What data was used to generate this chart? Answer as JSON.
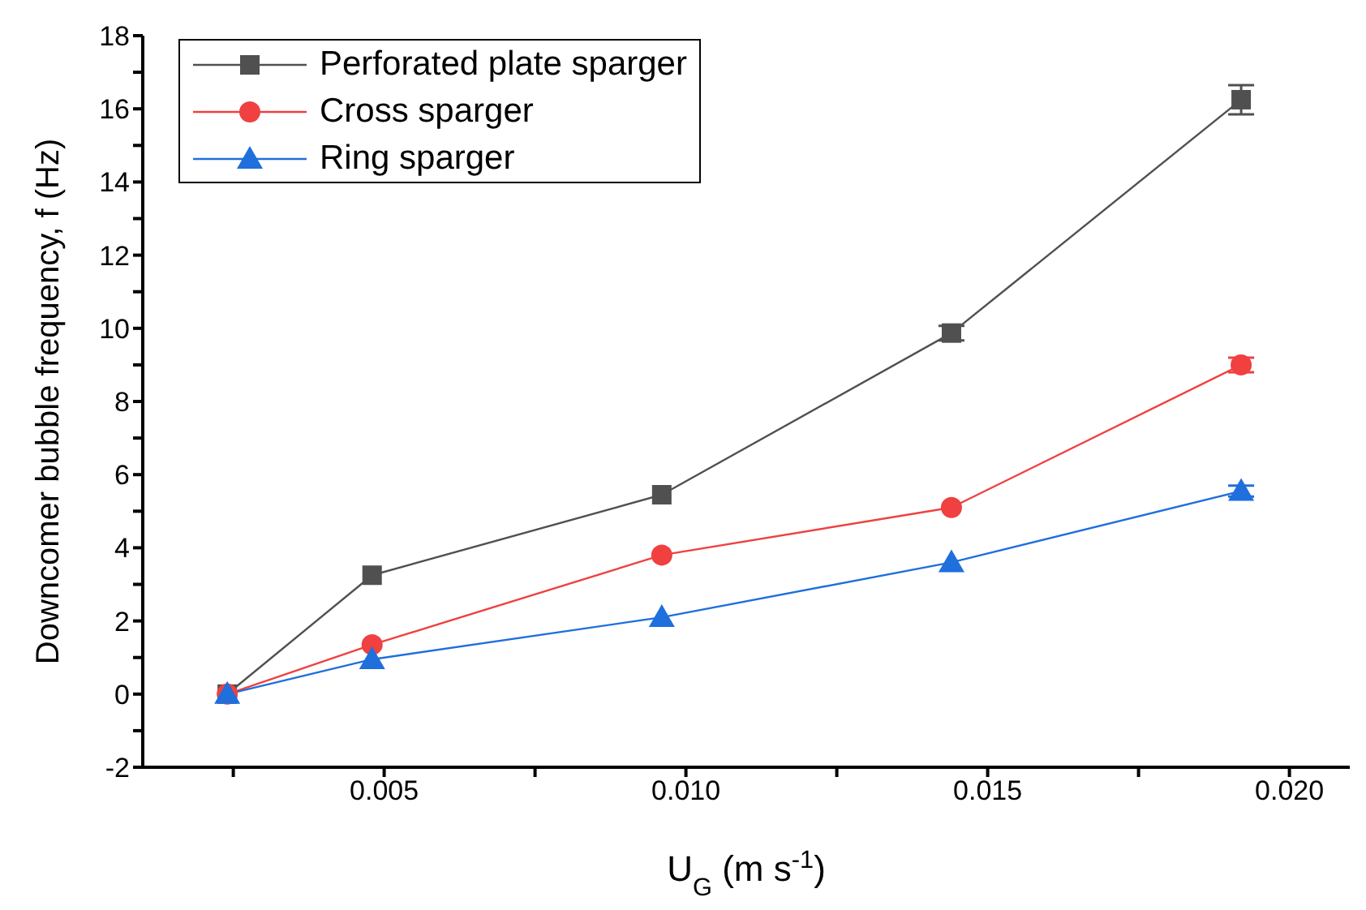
{
  "chart_data": {
    "type": "line",
    "xlabel": "U$_{G}$ (m s$^{-1}$)",
    "ylabel": "Downcomer bubble frequency, f (Hz)",
    "x": [
      0.0024,
      0.0048,
      0.0096,
      0.0144,
      0.0192
    ],
    "series": [
      {
        "name": "Perforated plate sparger",
        "color": "#505050",
        "marker": "square",
        "values": [
          0,
          3.25,
          5.45,
          9.87,
          16.25
        ],
        "errors": [
          null,
          null,
          null,
          0.2,
          0.4
        ]
      },
      {
        "name": "Cross sparger",
        "color": "#f04040",
        "marker": "circle",
        "values": [
          0,
          1.35,
          3.8,
          5.1,
          9.0
        ],
        "errors": [
          null,
          null,
          null,
          null,
          0.2
        ]
      },
      {
        "name": "Ring sparger",
        "color": "#1f6fdc",
        "marker": "triangle",
        "values": [
          0,
          0.95,
          2.1,
          3.6,
          5.55
        ],
        "errors": [
          null,
          null,
          null,
          null,
          0.15
        ]
      }
    ],
    "xlim": [
      0.001,
      0.021
    ],
    "xticks": [
      {
        "value": 0.0025,
        "label": null
      },
      0.005,
      {
        "value": 0.0075,
        "label": null
      },
      {
        "value": 0.01,
        "label": "0.010"
      },
      {
        "value": 0.0125,
        "label": null
      },
      0.015,
      {
        "value": 0.0175,
        "label": null
      },
      {
        "value": 0.02,
        "label": "0.020"
      }
    ],
    "ylim": [
      -2,
      18
    ],
    "yticks": [
      -2,
      {
        "value": -1,
        "label": null
      },
      0,
      {
        "value": 1,
        "label": null
      },
      2,
      {
        "value": 3,
        "label": null
      },
      4,
      {
        "value": 5,
        "label": null
      },
      6,
      {
        "value": 7,
        "label": null
      },
      8,
      {
        "value": 9,
        "label": null
      },
      10,
      {
        "value": 11,
        "label": null
      },
      12,
      {
        "value": 13,
        "label": null
      },
      14,
      {
        "value": 15,
        "label": null
      },
      16,
      {
        "value": 17,
        "label": null
      },
      18
    ],
    "grid": false,
    "legend": "top left",
    "line_style": "solid"
  }
}
